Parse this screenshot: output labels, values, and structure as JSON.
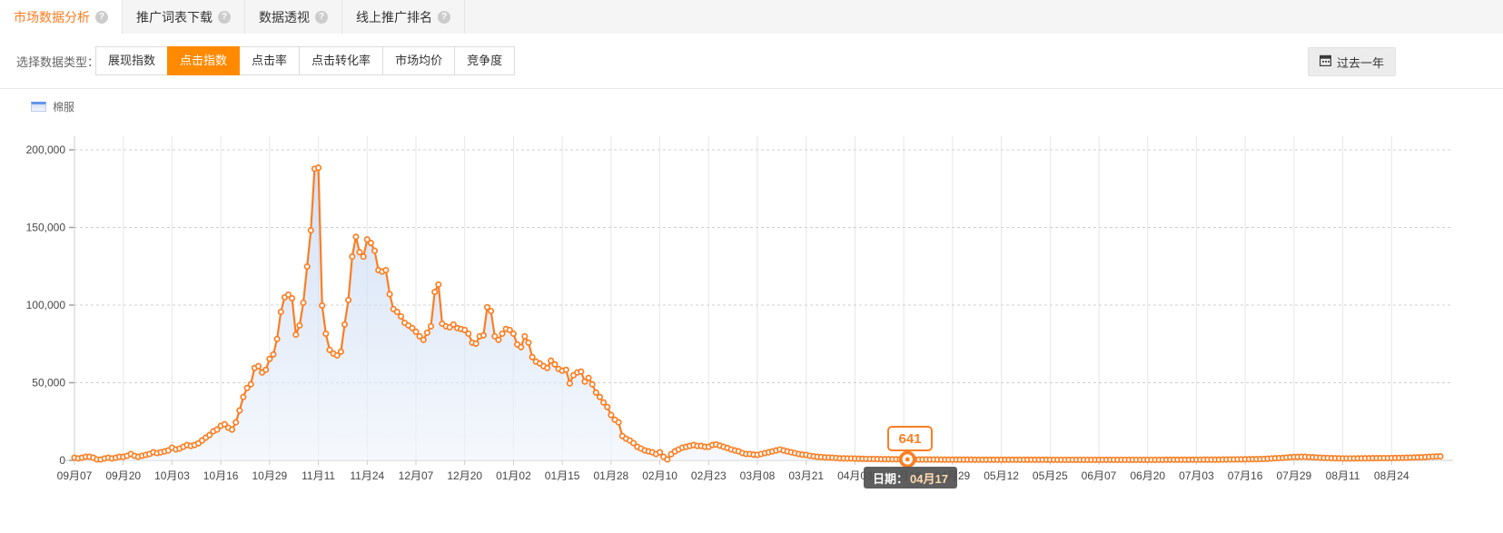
{
  "tabs": {
    "items": [
      {
        "label": "市场数据分析",
        "active": true
      },
      {
        "label": "推广词表下载",
        "active": false
      },
      {
        "label": "数据透视",
        "active": false
      },
      {
        "label": "线上推广排名",
        "active": false
      }
    ]
  },
  "icons": {
    "help": "?"
  },
  "filters": {
    "label": "选择数据类型：",
    "options": [
      {
        "label": "展现指数",
        "active": false
      },
      {
        "label": "点击指数",
        "active": true
      },
      {
        "label": "点击率",
        "active": false
      },
      {
        "label": "点击转化率",
        "active": false
      },
      {
        "label": "市场均价",
        "active": false
      },
      {
        "label": "竞争度",
        "active": false
      }
    ]
  },
  "date_range_button": {
    "label": "过去一年"
  },
  "legend": {
    "label": "棉服"
  },
  "highlight": {
    "value": "641",
    "tooltip_label": "日期：",
    "tooltip_date": "04月17"
  },
  "colors": {
    "accent": "#ff8a00",
    "tab_active_text": "#ff7b1e",
    "line": "#fb7e23",
    "grid_dash": "#cfcfcf",
    "grid_vertical": "#e6e6e6",
    "axis": "#cccccc",
    "tick_text": "#464646",
    "area_top": "#b9cff0",
    "area_bottom": "#f0f5fc"
  },
  "chart_data": {
    "type": "area",
    "series_name": "棉服",
    "metric": "点击指数",
    "ylim": [
      0,
      200000
    ],
    "grid": true,
    "legend_position": "top-left",
    "y_ticks": [
      {
        "value": 0,
        "label": "0"
      },
      {
        "value": 50000,
        "label": "50,000"
      },
      {
        "value": 100000,
        "label": "100,000"
      },
      {
        "value": 150000,
        "label": "150,000"
      },
      {
        "value": 200000,
        "label": "200,000"
      }
    ],
    "x_ticks": [
      "09月07",
      "09月20",
      "10月03",
      "10月16",
      "10月29",
      "11月11",
      "11月24",
      "12月07",
      "12月20",
      "01月02",
      "01月15",
      "01月28",
      "02月10",
      "02月23",
      "03月08",
      "03月21",
      "04月03",
      "04月16",
      "04月29",
      "05月12",
      "05月25",
      "06月07",
      "06月20",
      "07月03",
      "07月16",
      "07月29",
      "08月11",
      "08月24"
    ],
    "highlight_point": {
      "date": "04-17",
      "value": 641
    },
    "note": "Daily series over one year (09-07 to 09-06). Values below are sampled anchor points read from the plot; rendering interpolates to daily points.",
    "anchors": [
      [
        "09-07",
        1700
      ],
      [
        "09-08",
        1200
      ],
      [
        "09-09",
        1700
      ],
      [
        "09-10",
        2300
      ],
      [
        "09-11",
        2300
      ],
      [
        "09-12",
        1700
      ],
      [
        "09-13",
        600
      ],
      [
        "09-14",
        600
      ],
      [
        "09-15",
        1200
      ],
      [
        "09-16",
        1700
      ],
      [
        "09-17",
        1200
      ],
      [
        "09-18",
        1700
      ],
      [
        "09-19",
        2300
      ],
      [
        "09-20",
        2300
      ],
      [
        "09-21",
        2900
      ],
      [
        "09-22",
        4100
      ],
      [
        "09-23",
        2900
      ],
      [
        "09-24",
        2300
      ],
      [
        "09-25",
        2900
      ],
      [
        "09-26",
        3500
      ],
      [
        "09-27",
        4100
      ],
      [
        "09-28",
        5200
      ],
      [
        "09-29",
        4700
      ],
      [
        "09-30",
        5200
      ],
      [
        "10-01",
        5800
      ],
      [
        "10-02",
        6400
      ],
      [
        "10-03",
        8200
      ],
      [
        "10-04",
        7000
      ],
      [
        "10-05",
        7600
      ],
      [
        "10-06",
        8700
      ],
      [
        "10-07",
        9900
      ],
      [
        "10-08",
        9300
      ],
      [
        "10-09",
        9900
      ],
      [
        "10-10",
        11000
      ],
      [
        "10-11",
        12800
      ],
      [
        "10-12",
        14600
      ],
      [
        "10-13",
        16300
      ],
      [
        "10-14",
        18700
      ],
      [
        "10-15",
        19800
      ],
      [
        "10-16",
        22200
      ],
      [
        "10-17",
        23300
      ],
      [
        "10-18",
        21000
      ],
      [
        "10-19",
        19800
      ],
      [
        "10-20",
        24500
      ],
      [
        "10-21",
        32100
      ],
      [
        "10-22",
        40800
      ],
      [
        "10-23",
        46600
      ],
      [
        "10-24",
        49000
      ],
      [
        "10-25",
        59500
      ],
      [
        "10-26",
        60700
      ],
      [
        "10-27",
        56600
      ],
      [
        "10-28",
        58300
      ],
      [
        "10-29",
        65300
      ],
      [
        "10-30",
        68200
      ],
      [
        "10-31",
        78100
      ],
      [
        "11-01",
        95600
      ],
      [
        "11-02",
        105000
      ],
      [
        "11-03",
        106700
      ],
      [
        "11-04",
        104400
      ],
      [
        "11-05",
        81000
      ],
      [
        "11-06",
        86900
      ],
      [
        "11-07",
        101500
      ],
      [
        "11-08",
        124800
      ],
      [
        "11-09",
        148100
      ],
      [
        "11-10",
        187800
      ],
      [
        "11-11",
        188500
      ],
      [
        "11-12",
        99700
      ],
      [
        "11-13",
        81600
      ],
      [
        "11-14",
        71100
      ],
      [
        "11-15",
        68800
      ],
      [
        "11-16",
        67600
      ],
      [
        "11-17",
        70000
      ],
      [
        "11-18",
        87500
      ],
      [
        "11-19",
        103200
      ],
      [
        "11-20",
        131200
      ],
      [
        "11-21",
        144000
      ],
      [
        "11-22",
        134100
      ],
      [
        "11-23",
        131200
      ],
      [
        "11-24",
        142300
      ],
      [
        "11-25",
        140000
      ],
      [
        "11-26",
        135000
      ],
      [
        "11-27",
        122500
      ],
      [
        "11-28",
        121600
      ],
      [
        "11-29",
        122500
      ],
      [
        "11-30",
        107000
      ],
      [
        "12-01",
        97400
      ],
      [
        "12-02",
        95600
      ],
      [
        "12-03",
        92700
      ],
      [
        "12-04",
        88600
      ],
      [
        "12-05",
        86900
      ],
      [
        "12-06",
        85200
      ],
      [
        "12-07",
        82800
      ],
      [
        "12-08",
        79900
      ],
      [
        "12-09",
        77600
      ],
      [
        "12-10",
        82200
      ],
      [
        "12-11",
        86300
      ],
      [
        "12-12",
        108500
      ],
      [
        "12-13",
        113200
      ],
      [
        "12-14",
        88000
      ],
      [
        "12-15",
        86300
      ],
      [
        "12-16",
        85700
      ],
      [
        "12-17",
        87500
      ],
      [
        "12-18",
        85200
      ],
      [
        "12-19",
        84600
      ],
      [
        "12-20",
        84000
      ],
      [
        "12-21",
        81600
      ],
      [
        "12-22",
        75800
      ],
      [
        "12-23",
        75200
      ],
      [
        "12-24",
        79900
      ],
      [
        "12-25",
        80500
      ],
      [
        "12-26",
        98600
      ],
      [
        "12-27",
        96200
      ],
      [
        "12-28",
        79900
      ],
      [
        "12-29",
        77600
      ],
      [
        "12-30",
        81600
      ],
      [
        "12-31",
        84600
      ],
      [
        "01-01",
        84000
      ],
      [
        "01-02",
        81600
      ],
      [
        "01-03",
        74600
      ],
      [
        "01-04",
        72900
      ],
      [
        "01-05",
        79900
      ],
      [
        "01-06",
        75800
      ],
      [
        "01-07",
        66500
      ],
      [
        "01-08",
        63600
      ],
      [
        "01-09",
        62400
      ],
      [
        "01-10",
        60700
      ],
      [
        "01-11",
        59500
      ],
      [
        "01-12",
        64200
      ],
      [
        "01-13",
        61800
      ],
      [
        "01-14",
        58900
      ],
      [
        "01-15",
        57700
      ],
      [
        "01-16",
        58300
      ],
      [
        "01-17",
        49600
      ],
      [
        "01-18",
        54800
      ],
      [
        "01-19",
        56600
      ],
      [
        "01-20",
        57200
      ],
      [
        "01-21",
        50700
      ],
      [
        "01-22",
        53100
      ],
      [
        "01-23",
        49000
      ],
      [
        "01-24",
        43700
      ],
      [
        "01-25",
        40800
      ],
      [
        "01-26",
        37300
      ],
      [
        "01-27",
        34400
      ],
      [
        "01-28",
        29200
      ],
      [
        "01-29",
        26200
      ],
      [
        "01-30",
        24500
      ],
      [
        "01-31",
        15700
      ],
      [
        "02-01",
        14000
      ],
      [
        "02-02",
        12800
      ],
      [
        "02-03",
        11100
      ],
      [
        "02-04",
        8700
      ],
      [
        "02-05",
        7600
      ],
      [
        "02-06",
        6400
      ],
      [
        "02-07",
        5800
      ],
      [
        "02-08",
        5200
      ],
      [
        "02-09",
        4100
      ],
      [
        "02-10",
        5200
      ],
      [
        "02-11",
        2300
      ],
      [
        "02-12",
        600
      ],
      [
        "02-13",
        4000
      ],
      [
        "02-14",
        5800
      ],
      [
        "02-15",
        7000
      ],
      [
        "02-16",
        8200
      ],
      [
        "02-17",
        8700
      ],
      [
        "02-18",
        9300
      ],
      [
        "02-19",
        9900
      ],
      [
        "02-20",
        9300
      ],
      [
        "02-21",
        9300
      ],
      [
        "02-22",
        8700
      ],
      [
        "02-23",
        8700
      ],
      [
        "02-24",
        9900
      ],
      [
        "02-25",
        10200
      ],
      [
        "02-26",
        9500
      ],
      [
        "02-27",
        8700
      ],
      [
        "02-28",
        8000
      ],
      [
        "03-01",
        7000
      ],
      [
        "03-02",
        6400
      ],
      [
        "03-03",
        5800
      ],
      [
        "03-04",
        4700
      ],
      [
        "03-05",
        4100
      ],
      [
        "03-06",
        4100
      ],
      [
        "03-07",
        3700
      ],
      [
        "03-08",
        3500
      ],
      [
        "03-09",
        4100
      ],
      [
        "03-10",
        4700
      ],
      [
        "03-11",
        5200
      ],
      [
        "03-12",
        5800
      ],
      [
        "03-13",
        6400
      ],
      [
        "03-14",
        7000
      ],
      [
        "03-15",
        6400
      ],
      [
        "03-16",
        5800
      ],
      [
        "03-17",
        5200
      ],
      [
        "03-18",
        4700
      ],
      [
        "03-19",
        4100
      ],
      [
        "03-20",
        3700
      ],
      [
        "03-21",
        3500
      ],
      [
        "03-22",
        2900
      ],
      [
        "03-24",
        2300
      ],
      [
        "03-26",
        1900
      ],
      [
        "03-28",
        1700
      ],
      [
        "03-30",
        1300
      ],
      [
        "04-02",
        1200
      ],
      [
        "04-05",
        1000
      ],
      [
        "04-08",
        850
      ],
      [
        "04-11",
        750
      ],
      [
        "04-14",
        700
      ],
      [
        "04-16",
        660
      ],
      [
        "04-17",
        641
      ],
      [
        "04-20",
        550
      ],
      [
        "04-25",
        500
      ],
      [
        "05-01",
        450
      ],
      [
        "05-10",
        420
      ],
      [
        "05-20",
        400
      ],
      [
        "06-01",
        350
      ],
      [
        "06-15",
        350
      ],
      [
        "07-01",
        400
      ],
      [
        "07-10",
        500
      ],
      [
        "07-20",
        800
      ],
      [
        "07-26",
        1600
      ],
      [
        "07-29",
        2200
      ],
      [
        "08-01",
        2300
      ],
      [
        "08-04",
        1800
      ],
      [
        "08-08",
        1400
      ],
      [
        "08-12",
        1200
      ],
      [
        "08-16",
        1300
      ],
      [
        "08-20",
        1400
      ],
      [
        "08-24",
        1500
      ],
      [
        "08-28",
        1700
      ],
      [
        "09-01",
        2000
      ],
      [
        "09-04",
        2400
      ],
      [
        "09-06",
        2600
      ]
    ]
  }
}
